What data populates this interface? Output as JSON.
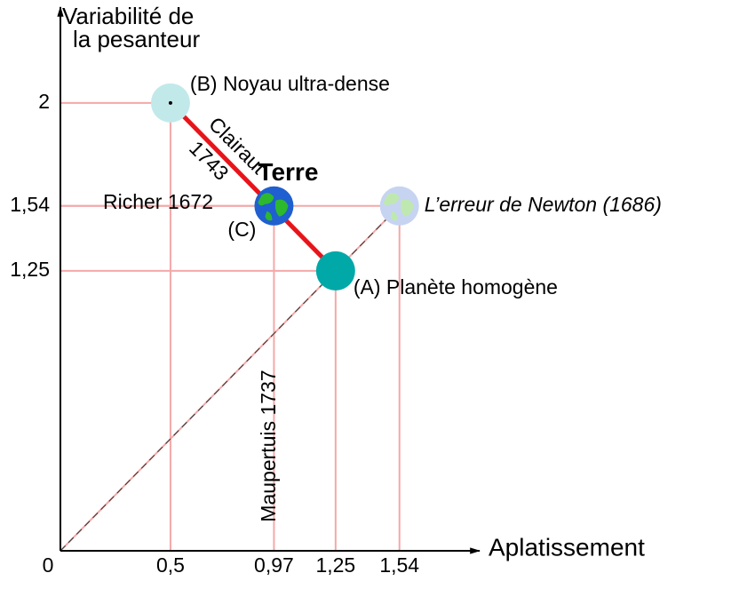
{
  "chart_data": {
    "type": "scatter",
    "ylabel": [
      "Variabilité de",
      "la pesanteur"
    ],
    "xlabel": "Aplatissement",
    "xlim": [
      0,
      1.88
    ],
    "ylim": [
      0,
      2.4
    ],
    "xticks": [
      0,
      {
        "value": 0.5,
        "label": "0,5"
      },
      {
        "value": 0.97,
        "label": "0,97"
      },
      {
        "value": 1.25,
        "label": "1,25"
      },
      {
        "value": 1.54,
        "label": "1,54"
      }
    ],
    "yticks": [
      {
        "value": 1.25,
        "label": "1,25"
      },
      {
        "value": 1.54,
        "label": "1,54"
      },
      2
    ],
    "points": [
      {
        "label": "(B) Noyau ultra-dense",
        "x": 0.5,
        "y": 2,
        "color": "#c2e9ea"
      },
      {
        "label": "Terre",
        "tag": "(C)",
        "x": 0.97,
        "y": 1.54,
        "color": "#1f5fd0"
      },
      {
        "label": "L’erreur de Newton (1686)",
        "x": 1.54,
        "y": 1.54,
        "color": "#c6d4f2"
      },
      {
        "label": "(A) Planète homogène",
        "x": 1.25,
        "y": 1.25,
        "color": "#00a8a8"
      }
    ],
    "annotations": [
      "Clairaut",
      "1743",
      "Richer 1672",
      "Maupertuis 1737"
    ]
  }
}
